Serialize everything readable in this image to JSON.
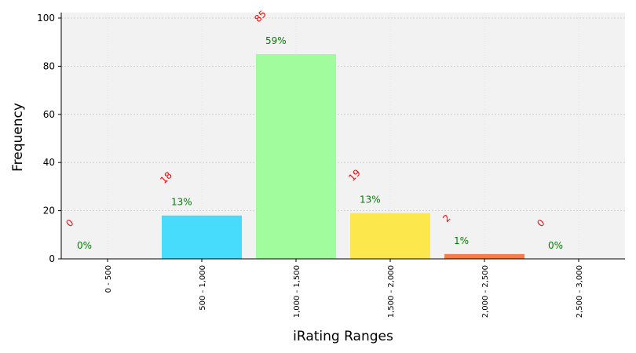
{
  "chart_data": {
    "type": "bar",
    "xlabel": "iRating Ranges",
    "ylabel": "Frequency",
    "ylim": [
      0,
      102
    ],
    "yticks": [
      0,
      20,
      40,
      60,
      80,
      100
    ],
    "grid": true,
    "categories": [
      "0 - 500",
      "500 - 1,000",
      "1,000 - 1,500",
      "1,500 - 2,000",
      "2,000 - 2,500",
      "2,500 - 3,000"
    ],
    "values": [
      0,
      18,
      85,
      19,
      2,
      0
    ],
    "count_labels": [
      "0",
      "18",
      "85",
      "19",
      "2",
      "0"
    ],
    "percent_labels": [
      "0%",
      "13%",
      "59%",
      "13%",
      "1%",
      "0%"
    ],
    "colors": [
      "#a0a0a0",
      "#48dcfc",
      "#a0fc9c",
      "#fce84c",
      "#fc7c48",
      "#a0a0a0"
    ],
    "count_label_color": "#ff0000",
    "percent_label_color": "#008000",
    "plot_background": "#f2f2f2"
  }
}
